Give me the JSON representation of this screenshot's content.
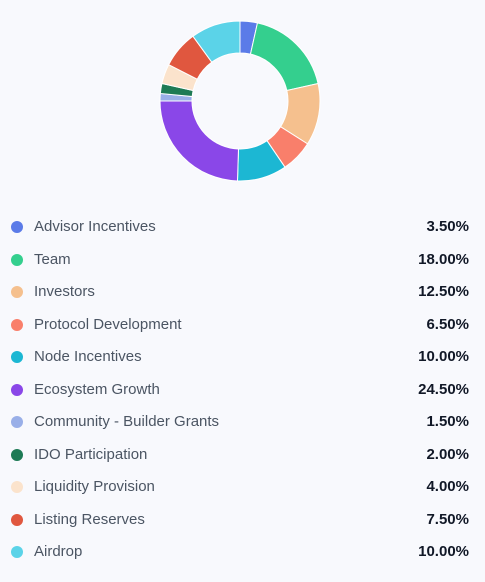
{
  "chart_data": {
    "type": "pie",
    "variant": "donut",
    "title": "",
    "legend_position": "bottom",
    "categories": [
      "Advisor Incentives",
      "Team",
      "Investors",
      "Protocol Development",
      "Node Incentives",
      "Ecosystem Growth",
      "Community - Builder Grants",
      "IDO Participation",
      "Liquidity Provision",
      "Listing Reserves",
      "Airdrop"
    ],
    "values": [
      3.5,
      18.0,
      12.5,
      6.5,
      10.0,
      24.5,
      1.5,
      2.0,
      4.0,
      7.5,
      10.0
    ],
    "value_labels": [
      "3.50%",
      "18.00%",
      "12.50%",
      "6.50%",
      "10.00%",
      "24.50%",
      "1.50%",
      "2.00%",
      "4.00%",
      "7.50%",
      "10.00%"
    ],
    "colors": [
      "#5b7be8",
      "#34cf8e",
      "#f5c08e",
      "#f97f6b",
      "#1cb7d3",
      "#8a47e8",
      "#99afe8",
      "#1d7a55",
      "#fbe3cc",
      "#e0573f",
      "#5bd3e8"
    ]
  }
}
